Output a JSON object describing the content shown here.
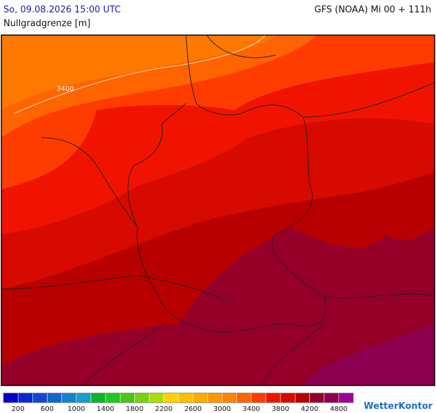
{
  "header": {
    "valid_time": "So, 09.08.2026 15:00 UTC",
    "model_run": "GFS (NOAA) Mi 00 + 111h",
    "parameter": "Nullgradgrenze [m]"
  },
  "map": {
    "contour_labels": [
      "3400"
    ]
  },
  "colorbar": {
    "colors": [
      "#0000c8",
      "#0a28d2",
      "#1446d2",
      "#1464cd",
      "#1482cd",
      "#14a0c8",
      "#10b428",
      "#1ec81e",
      "#46c814",
      "#78d214",
      "#aadc0a",
      "#ffd200",
      "#ffbe00",
      "#ffaa00",
      "#ff9600",
      "#ff8200",
      "#ff6400",
      "#ff3c00",
      "#f01400",
      "#d70a00",
      "#b90000",
      "#960028",
      "#8c0050",
      "#a00096"
    ],
    "labels": [
      "200",
      "600",
      "1000",
      "1400",
      "1800",
      "2200",
      "2600",
      "3000",
      "3400",
      "3800",
      "4200",
      "4800"
    ]
  },
  "logo": "WetterKontor"
}
